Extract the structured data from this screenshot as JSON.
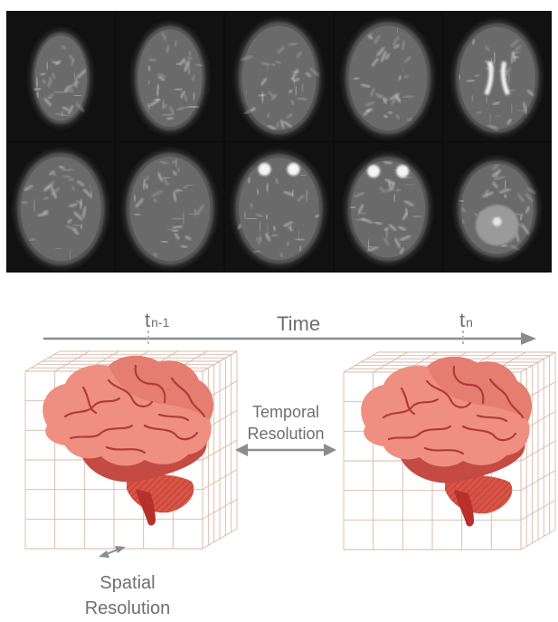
{
  "mri_panel": {
    "rows": 2,
    "cols": 5,
    "description_icon": "mri-axial-slice-grid"
  },
  "timeline": {
    "title": "Time",
    "tick_left_base": "t",
    "tick_left_sub": "n-1",
    "tick_right_base": "t",
    "tick_right_sub": "n"
  },
  "temporal_resolution": {
    "line1": "Temporal",
    "line2": "Resolution"
  },
  "spatial_resolution": {
    "line1": "Spatial",
    "line2": "Resolution"
  },
  "colors": {
    "axis": "#8c8c8c",
    "grid": "#d9b8a8",
    "brain_light": "#ee8f82",
    "brain_mid": "#e07064",
    "brain_dark": "#c44a44",
    "brain_sulci": "#b03c3a",
    "cerebellum": "#d85446",
    "stem": "#b7302c"
  }
}
